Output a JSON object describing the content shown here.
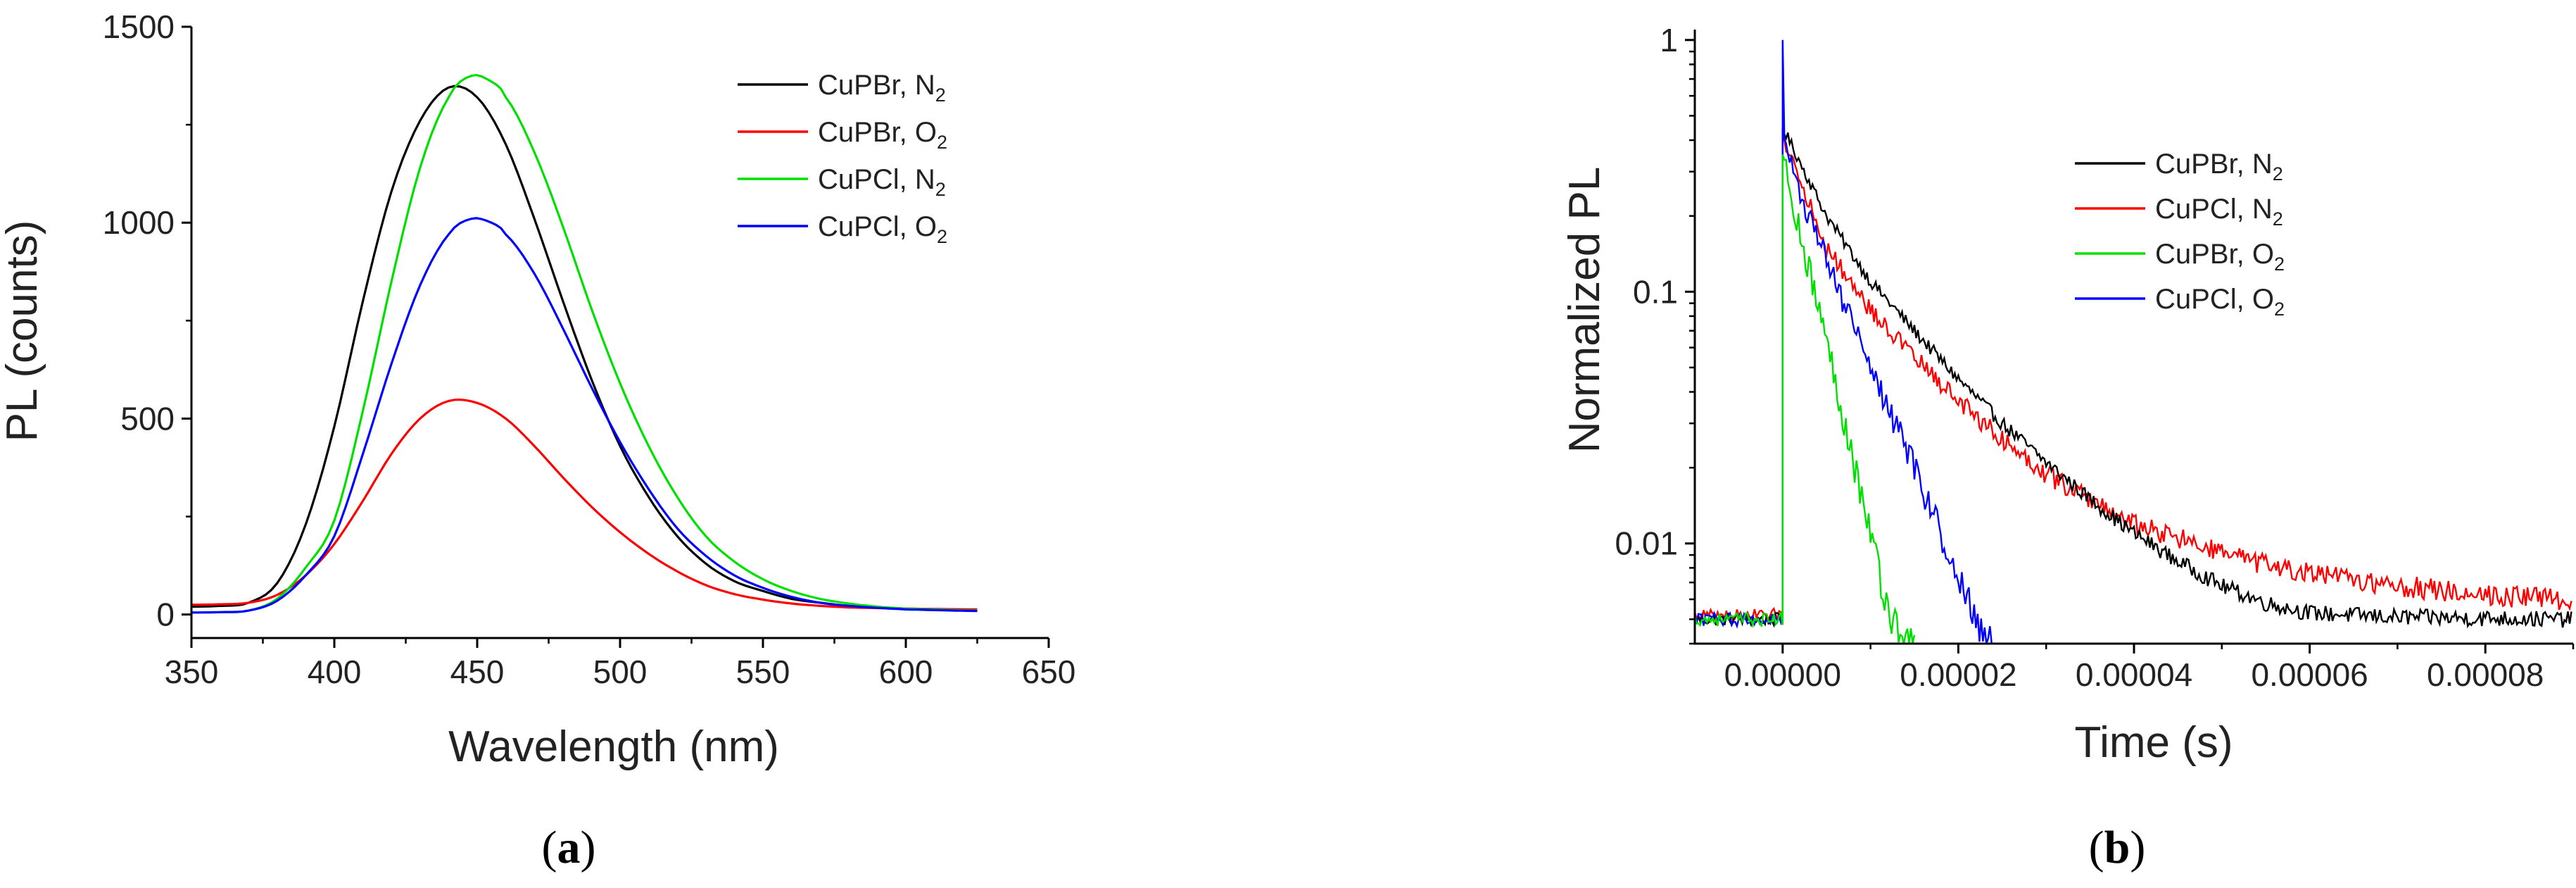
{
  "chart_data": [
    {
      "panel": "a",
      "type": "line",
      "xlabel": "Wavelength (nm)",
      "ylabel": "PL (counts)",
      "xlim": [
        350,
        650
      ],
      "ylim": [
        -60,
        1500
      ],
      "xticks": [
        350,
        400,
        450,
        500,
        550,
        600,
        650
      ],
      "yticks": [
        0,
        500,
        1000,
        1500
      ],
      "legend_position": "top-right",
      "series": [
        {
          "name": "CuPBr, N2",
          "label_main": "CuPBr, N",
          "label_sub": "2",
          "color": "#000000",
          "points": [
            [
              350,
              20
            ],
            [
              360,
              22
            ],
            [
              370,
              30
            ],
            [
              380,
              80
            ],
            [
              390,
              230
            ],
            [
              400,
              480
            ],
            [
              410,
              800
            ],
            [
              420,
              1080
            ],
            [
              430,
              1260
            ],
            [
              440,
              1345
            ],
            [
              450,
              1320
            ],
            [
              460,
              1200
            ],
            [
              470,
              1010
            ],
            [
              480,
              800
            ],
            [
              490,
              600
            ],
            [
              500,
              430
            ],
            [
              510,
              300
            ],
            [
              520,
              200
            ],
            [
              530,
              130
            ],
            [
              540,
              85
            ],
            [
              550,
              60
            ],
            [
              560,
              40
            ],
            [
              570,
              30
            ],
            [
              580,
              22
            ],
            [
              590,
              18
            ],
            [
              600,
              15
            ],
            [
              625,
              12
            ]
          ]
        },
        {
          "name": "CuPBr, O2",
          "label_main": "CuPBr, O",
          "label_sub": "2",
          "color": "#ff0000",
          "points": [
            [
              350,
              25
            ],
            [
              360,
              26
            ],
            [
              370,
              30
            ],
            [
              380,
              50
            ],
            [
              390,
              100
            ],
            [
              400,
              180
            ],
            [
              410,
              290
            ],
            [
              420,
              410
            ],
            [
              430,
              500
            ],
            [
              440,
              545
            ],
            [
              450,
              540
            ],
            [
              460,
              500
            ],
            [
              470,
              430
            ],
            [
              480,
              350
            ],
            [
              490,
              275
            ],
            [
              500,
              210
            ],
            [
              510,
              155
            ],
            [
              520,
              110
            ],
            [
              530,
              75
            ],
            [
              540,
              52
            ],
            [
              550,
              38
            ],
            [
              560,
              28
            ],
            [
              570,
              22
            ],
            [
              580,
              18
            ],
            [
              600,
              15
            ],
            [
              625,
              13
            ]
          ]
        },
        {
          "name": "CuPCl, N2",
          "label_main": "CuPCl, N",
          "label_sub": "2",
          "color": "#00e000",
          "points": [
            [
              350,
              5
            ],
            [
              360,
              6
            ],
            [
              370,
              10
            ],
            [
              380,
              40
            ],
            [
              390,
              120
            ],
            [
              400,
              240
            ],
            [
              410,
              520
            ],
            [
              420,
              850
            ],
            [
              430,
              1140
            ],
            [
              440,
              1320
            ],
            [
              448,
              1375
            ],
            [
              455,
              1360
            ],
            [
              460,
              1320
            ],
            [
              470,
              1180
            ],
            [
              480,
              990
            ],
            [
              490,
              780
            ],
            [
              500,
              590
            ],
            [
              510,
              430
            ],
            [
              520,
              300
            ],
            [
              530,
              200
            ],
            [
              540,
              135
            ],
            [
              550,
              90
            ],
            [
              560,
              60
            ],
            [
              570,
              40
            ],
            [
              580,
              28
            ],
            [
              590,
              20
            ],
            [
              600,
              15
            ],
            [
              625,
              10
            ]
          ]
        },
        {
          "name": "CuPCl, O2",
          "label_main": "CuPCl, O",
          "label_sub": "2",
          "color": "#0000ff",
          "points": [
            [
              350,
              5
            ],
            [
              360,
              6
            ],
            [
              370,
              10
            ],
            [
              380,
              35
            ],
            [
              390,
              100
            ],
            [
              400,
              200
            ],
            [
              410,
              410
            ],
            [
              420,
              640
            ],
            [
              430,
              840
            ],
            [
              440,
              970
            ],
            [
              448,
              1010
            ],
            [
              455,
              1000
            ],
            [
              460,
              970
            ],
            [
              470,
              870
            ],
            [
              480,
              730
            ],
            [
              490,
              580
            ],
            [
              500,
              440
            ],
            [
              510,
              320
            ],
            [
              520,
              220
            ],
            [
              530,
              150
            ],
            [
              540,
              100
            ],
            [
              550,
              68
            ],
            [
              560,
              45
            ],
            [
              570,
              30
            ],
            [
              580,
              22
            ],
            [
              590,
              17
            ],
            [
              600,
              13
            ],
            [
              625,
              9
            ]
          ]
        }
      ]
    },
    {
      "panel": "b",
      "type": "line",
      "xlabel": "Time (s)",
      "ylabel": "Normalized PL",
      "y_scale": "log",
      "xlim": [
        -1e-05,
        9e-05
      ],
      "ylim": [
        0.004,
        1.1
      ],
      "xticks": [
        "0.00000",
        "0.00002",
        "0.00004",
        "0.00006",
        "0.00008"
      ],
      "xtick_values": [
        0,
        2e-05,
        4e-05,
        6e-05,
        8e-05
      ],
      "yticks": [
        "0.01",
        "0.1",
        "1"
      ],
      "ytick_values": [
        0.01,
        0.1,
        1
      ],
      "legend_position": "top-right",
      "series": [
        {
          "name": "CuPBr, N2",
          "label_main": "CuPBr, N",
          "label_sub": "2",
          "color": "#000000",
          "peak": 0.45,
          "baseline": 0.005,
          "pre_level": 0.005,
          "end": 9e-05,
          "noise": 0.05,
          "decay": [
            [
              0.0,
              0.45
            ],
            [
              5e-06,
              0.2
            ],
            [
              1e-05,
              0.11
            ],
            [
              1.5e-05,
              0.07
            ],
            [
              2e-05,
              0.045
            ],
            [
              2.5e-05,
              0.03
            ],
            [
              3e-05,
              0.021
            ],
            [
              3.5e-05,
              0.015
            ],
            [
              4e-05,
              0.011
            ],
            [
              4.5e-05,
              0.0085
            ],
            [
              5e-05,
              0.0068
            ],
            [
              5.5e-05,
              0.0058
            ],
            [
              6e-05,
              0.0053
            ],
            [
              7e-05,
              0.0051
            ],
            [
              9e-05,
              0.005
            ]
          ]
        },
        {
          "name": "CuPCl, N2",
          "label_main": "CuPCl, N",
          "label_sub": "2",
          "color": "#ff0000",
          "peak": 0.42,
          "baseline": 0.006,
          "pre_level": 0.0052,
          "end": 9e-05,
          "noise": 0.07,
          "decay": [
            [
              0.0,
              0.42
            ],
            [
              5e-06,
              0.15
            ],
            [
              1e-05,
              0.085
            ],
            [
              1.5e-05,
              0.055
            ],
            [
              2e-05,
              0.037
            ],
            [
              2.5e-05,
              0.026
            ],
            [
              3e-05,
              0.019
            ],
            [
              3.5e-05,
              0.015
            ],
            [
              4e-05,
              0.012
            ],
            [
              4.5e-05,
              0.0105
            ],
            [
              5e-05,
              0.0092
            ],
            [
              5.5e-05,
              0.0082
            ],
            [
              6e-05,
              0.0076
            ],
            [
              7e-05,
              0.0068
            ],
            [
              8e-05,
              0.0063
            ],
            [
              9e-05,
              0.006
            ]
          ]
        },
        {
          "name": "CuPBr, O2",
          "label_main": "CuPBr, O",
          "label_sub": "2",
          "color": "#00e000",
          "peak": 0.35,
          "baseline": 0.004,
          "pre_level": 0.005,
          "end": 1.5e-05,
          "noise": 0.12,
          "decay": [
            [
              0.0,
              0.35
            ],
            [
              2e-06,
              0.17
            ],
            [
              4e-06,
              0.09
            ],
            [
              6e-06,
              0.045
            ],
            [
              8e-06,
              0.022
            ],
            [
              1e-05,
              0.011
            ],
            [
              1.2e-05,
              0.0055
            ],
            [
              1.4e-05,
              0.004
            ]
          ]
        },
        {
          "name": "CuPCl, O2",
          "label_main": "CuPCl, O",
          "label_sub": "2",
          "color": "#0000ff",
          "peak": 0.4,
          "baseline": 0.004,
          "pre_level": 0.005,
          "end": 2.45e-05,
          "noise": 0.1,
          "decay": [
            [
              0.0,
              0.4
            ],
            [
              3e-06,
              0.2
            ],
            [
              6e-06,
              0.11
            ],
            [
              9e-06,
              0.06
            ],
            [
              1.2e-05,
              0.035
            ],
            [
              1.5e-05,
              0.02
            ],
            [
              1.8e-05,
              0.011
            ],
            [
              2e-05,
              0.0075
            ],
            [
              2.2e-05,
              0.005
            ],
            [
              2.4e-05,
              0.004
            ]
          ]
        }
      ]
    }
  ],
  "panel_labels": {
    "a": {
      "open": "(",
      "letter": "a",
      "close": ")"
    },
    "b": {
      "open": "(",
      "letter": "b",
      "close": ")"
    }
  }
}
